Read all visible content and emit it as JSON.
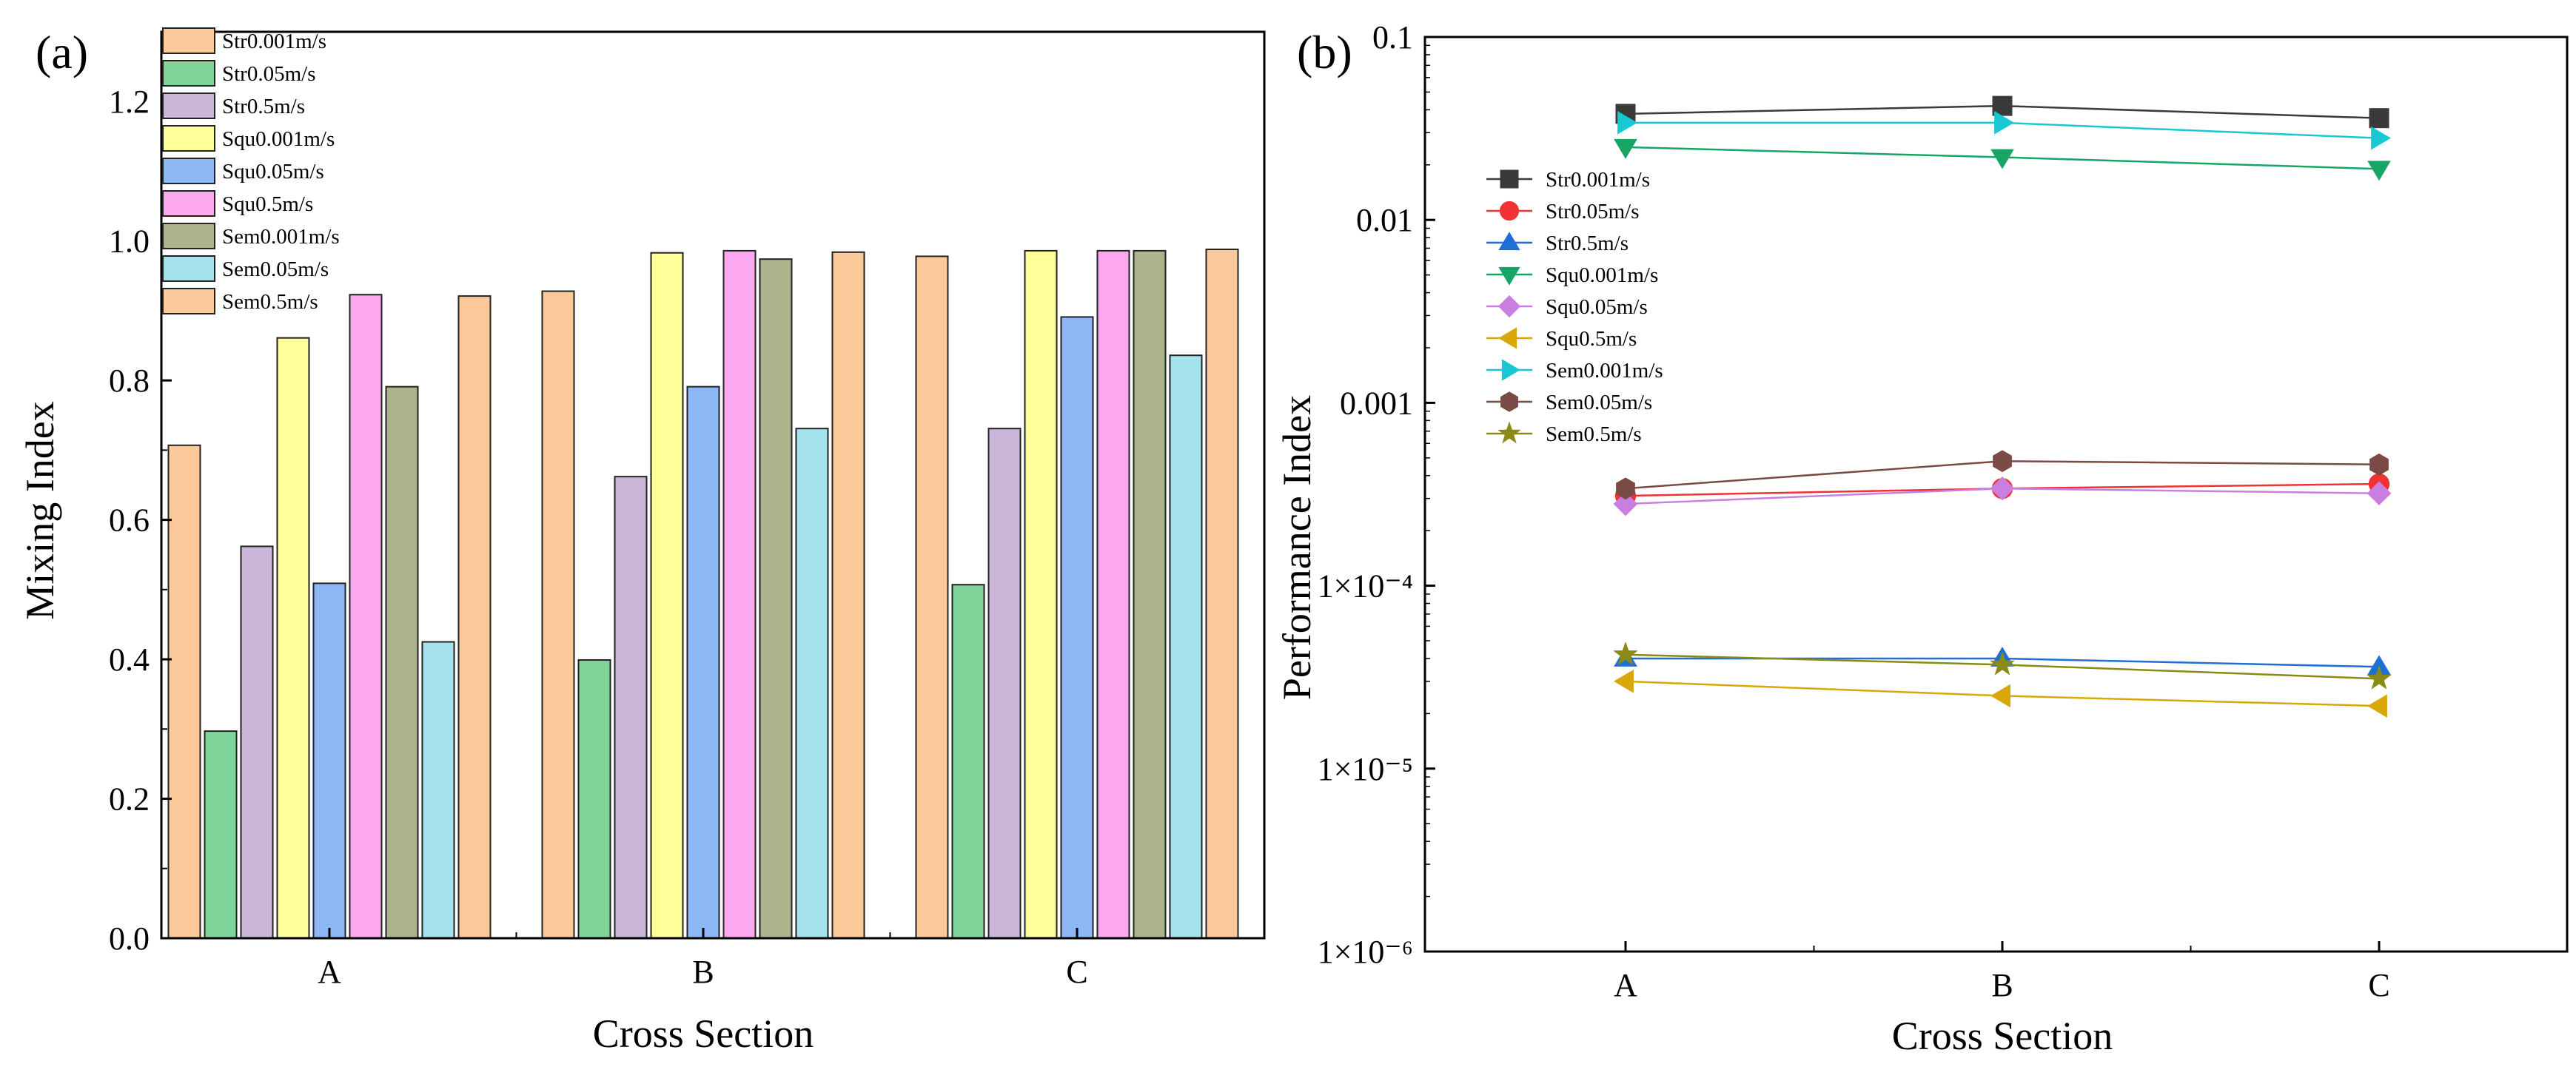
{
  "panels": {
    "a": "(a)",
    "b": "(b)"
  },
  "chart_data": [
    {
      "type": "bar",
      "title": "",
      "xlabel": "Cross Section",
      "ylabel": "Mixing Index",
      "categories": [
        "A",
        "B",
        "C"
      ],
      "ylim": [
        0,
        1.3
      ],
      "yticks": [
        "0.0",
        "0.2",
        "0.4",
        "0.6",
        "0.8",
        "1.0",
        "1.2"
      ],
      "legend_position": "top-left",
      "series": [
        {
          "name": "Str0.001m/s",
          "color": "#FCC99A",
          "values": [
            0.707,
            0.928,
            0.978
          ]
        },
        {
          "name": "Str0.05m/s",
          "color": "#7FD59A",
          "values": [
            0.297,
            0.399,
            0.507
          ]
        },
        {
          "name": "Str0.5m/s",
          "color": "#C9B6D9",
          "values": [
            0.562,
            0.662,
            0.731
          ]
        },
        {
          "name": "Squ0.001m/s",
          "color": "#FFFF99",
          "values": [
            0.861,
            0.983,
            0.986
          ]
        },
        {
          "name": "Squ0.05m/s",
          "color": "#8DB7F5",
          "values": [
            0.509,
            0.791,
            0.891
          ]
        },
        {
          "name": "Squ0.5m/s",
          "color": "#FCA8F0",
          "values": [
            0.923,
            0.986,
            0.986
          ]
        },
        {
          "name": "Sem0.001m/s",
          "color": "#ABB48C",
          "values": [
            0.791,
            0.974,
            0.986
          ]
        },
        {
          "name": "Sem0.05m/s",
          "color": "#A5E3EC",
          "values": [
            0.425,
            0.731,
            0.836
          ]
        },
        {
          "name": "Sem0.5m/s",
          "color": "#FCC99A",
          "values": [
            0.921,
            0.984,
            0.988
          ]
        }
      ]
    },
    {
      "type": "line",
      "title": "",
      "xlabel": "Cross Section",
      "ylabel": "Performance Index",
      "yscale": "log",
      "x": [
        "A",
        "B",
        "C"
      ],
      "ylim": [
        1e-06,
        0.1
      ],
      "yticks": [
        "1×10⁻⁶",
        "1×10⁻⁵",
        "1×10⁻⁴",
        "0.001",
        "0.01",
        "0.1"
      ],
      "legend_position": "upper-left",
      "series": [
        {
          "name": "Str0.001m/s",
          "color": "#3A3A3A",
          "marker": "square",
          "values": [
            0.038,
            0.042,
            0.036
          ]
        },
        {
          "name": "Str0.05m/s",
          "color": "#F03232",
          "marker": "circle",
          "values": [
            0.00031,
            0.00034,
            0.00036
          ]
        },
        {
          "name": "Str0.5m/s",
          "color": "#1F6FD6",
          "marker": "triangle-up",
          "values": [
            4e-05,
            4e-05,
            3.6e-05
          ]
        },
        {
          "name": "Squ0.001m/s",
          "color": "#17A566",
          "marker": "triangle-down",
          "values": [
            0.025,
            0.022,
            0.019
          ]
        },
        {
          "name": "Squ0.05m/s",
          "color": "#C97FE0",
          "marker": "diamond",
          "values": [
            0.00028,
            0.00034,
            0.00032
          ]
        },
        {
          "name": "Squ0.5m/s",
          "color": "#D8A70A",
          "marker": "triangle-left",
          "values": [
            3e-05,
            2.5e-05,
            2.2e-05
          ]
        },
        {
          "name": "Sem0.001m/s",
          "color": "#19C8D2",
          "marker": "triangle-right",
          "values": [
            0.034,
            0.034,
            0.028
          ]
        },
        {
          "name": "Sem0.05m/s",
          "color": "#7A4B45",
          "marker": "hexagon",
          "values": [
            0.00034,
            0.00048,
            0.00046
          ]
        },
        {
          "name": "Sem0.5m/s",
          "color": "#8A8A17",
          "marker": "star",
          "values": [
            4.2e-05,
            3.7e-05,
            3.1e-05
          ]
        }
      ]
    }
  ]
}
